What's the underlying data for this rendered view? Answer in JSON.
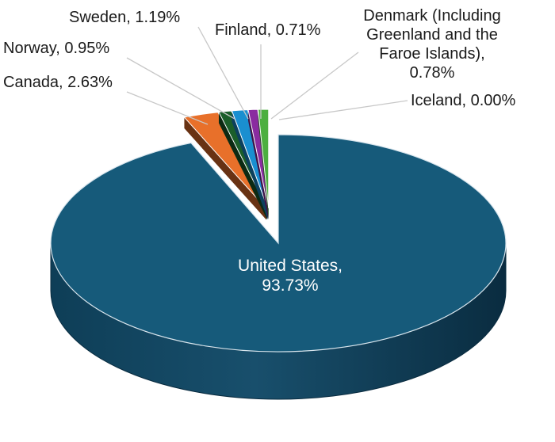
{
  "chart_data": {
    "type": "pie",
    "title": "",
    "style": "3d-exploded",
    "colors": {
      "United States": "#165a7a",
      "Canada": "#e8702a",
      "Norway": "#1b5e2a",
      "Sweden": "#1a8fd0",
      "Finland": "#8a2ca0",
      "Denmark": "#4caf3f",
      "Iceland": "#9e9e9e"
    },
    "slices": [
      {
        "name": "United States",
        "value": 93.73,
        "label_lines": [
          "United States,",
          "93.73%"
        ]
      },
      {
        "name": "Canada",
        "value": 2.63,
        "label_lines": [
          "Canada, 2.63%"
        ]
      },
      {
        "name": "Norway",
        "value": 0.95,
        "label_lines": [
          "Norway, 0.95%"
        ]
      },
      {
        "name": "Sweden",
        "value": 1.19,
        "label_lines": [
          "Sweden, 1.19%"
        ]
      },
      {
        "name": "Finland",
        "value": 0.71,
        "label_lines": [
          "Finland, 0.71%"
        ]
      },
      {
        "name": "Denmark",
        "value": 0.78,
        "label_lines": [
          "Denmark (Including",
          "Greenland and the",
          "Faroe Islands),",
          "0.78%"
        ]
      },
      {
        "name": "Iceland",
        "value": 0.0,
        "label_lines": [
          "Iceland, 0.00%"
        ]
      }
    ]
  }
}
